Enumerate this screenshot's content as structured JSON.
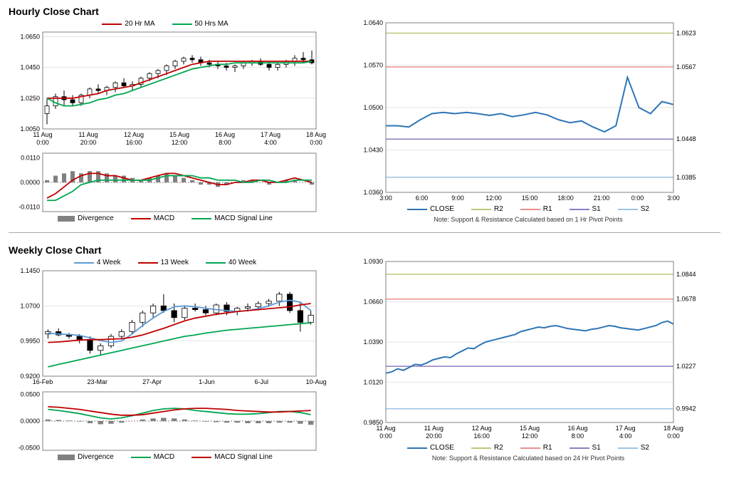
{
  "hourly": {
    "title": "Hourly Close Chart",
    "main": {
      "legend": [
        {
          "color": "#c00000",
          "label": "20 Hr MA"
        },
        {
          "color": "#00a651",
          "label": "50 Hrs MA"
        }
      ],
      "y_ticks": [
        1.005,
        1.025,
        1.045,
        1.065
      ],
      "ylim": [
        1.005,
        1.068
      ],
      "x_labels": [
        "11 Aug",
        "11 Aug",
        "12 Aug",
        "15 Aug",
        "16 Aug",
        "17 Aug",
        "18 Aug"
      ],
      "x_sub": [
        "0:00",
        "20:00",
        "16:00",
        "12:00",
        "8:00",
        "4:00",
        "0:00"
      ],
      "candles": [
        {
          "o": 1.015,
          "h": 1.025,
          "l": 1.008,
          "c": 1.02
        },
        {
          "o": 1.02,
          "h": 1.028,
          "l": 1.018,
          "c": 1.026
        },
        {
          "o": 1.026,
          "h": 1.03,
          "l": 1.02,
          "c": 1.024
        },
        {
          "o": 1.024,
          "h": 1.027,
          "l": 1.02,
          "c": 1.022
        },
        {
          "o": 1.022,
          "h": 1.028,
          "l": 1.02,
          "c": 1.027
        },
        {
          "o": 1.027,
          "h": 1.032,
          "l": 1.025,
          "c": 1.031
        },
        {
          "o": 1.031,
          "h": 1.034,
          "l": 1.028,
          "c": 1.03
        },
        {
          "o": 1.03,
          "h": 1.033,
          "l": 1.027,
          "c": 1.032
        },
        {
          "o": 1.032,
          "h": 1.036,
          "l": 1.029,
          "c": 1.035
        },
        {
          "o": 1.035,
          "h": 1.038,
          "l": 1.032,
          "c": 1.033
        },
        {
          "o": 1.033,
          "h": 1.036,
          "l": 1.03,
          "c": 1.034
        },
        {
          "o": 1.034,
          "h": 1.039,
          "l": 1.032,
          "c": 1.038
        },
        {
          "o": 1.038,
          "h": 1.042,
          "l": 1.036,
          "c": 1.041
        },
        {
          "o": 1.041,
          "h": 1.044,
          "l": 1.038,
          "c": 1.043
        },
        {
          "o": 1.043,
          "h": 1.047,
          "l": 1.04,
          "c": 1.046
        },
        {
          "o": 1.046,
          "h": 1.05,
          "l": 1.044,
          "c": 1.049
        },
        {
          "o": 1.049,
          "h": 1.052,
          "l": 1.047,
          "c": 1.051
        },
        {
          "o": 1.051,
          "h": 1.053,
          "l": 1.048,
          "c": 1.05
        },
        {
          "o": 1.05,
          "h": 1.052,
          "l": 1.046,
          "c": 1.048
        },
        {
          "o": 1.048,
          "h": 1.05,
          "l": 1.045,
          "c": 1.047
        },
        {
          "o": 1.047,
          "h": 1.049,
          "l": 1.044,
          "c": 1.046
        },
        {
          "o": 1.046,
          "h": 1.048,
          "l": 1.043,
          "c": 1.045
        },
        {
          "o": 1.045,
          "h": 1.047,
          "l": 1.042,
          "c": 1.046
        },
        {
          "o": 1.046,
          "h": 1.049,
          "l": 1.044,
          "c": 1.048
        },
        {
          "o": 1.048,
          "h": 1.05,
          "l": 1.046,
          "c": 1.049
        },
        {
          "o": 1.049,
          "h": 1.051,
          "l": 1.046,
          "c": 1.047
        },
        {
          "o": 1.047,
          "h": 1.049,
          "l": 1.043,
          "c": 1.045
        },
        {
          "o": 1.045,
          "h": 1.048,
          "l": 1.043,
          "c": 1.047
        },
        {
          "o": 1.047,
          "h": 1.05,
          "l": 1.045,
          "c": 1.049
        },
        {
          "o": 1.049,
          "h": 1.053,
          "l": 1.046,
          "c": 1.051
        },
        {
          "o": 1.051,
          "h": 1.055,
          "l": 1.048,
          "c": 1.05
        },
        {
          "o": 1.05,
          "h": 1.056,
          "l": 1.047,
          "c": 1.048
        }
      ],
      "ma20": [
        1.025,
        1.025,
        1.025,
        1.025,
        1.026,
        1.027,
        1.028,
        1.03,
        1.031,
        1.032,
        1.033,
        1.035,
        1.037,
        1.039,
        1.041,
        1.043,
        1.045,
        1.047,
        1.048,
        1.049,
        1.049,
        1.049,
        1.049,
        1.049,
        1.049,
        1.049,
        1.049,
        1.049,
        1.049,
        1.049,
        1.049,
        1.049
      ],
      "ma50": [
        1.025,
        1.022,
        1.02,
        1.02,
        1.021,
        1.022,
        1.024,
        1.025,
        1.027,
        1.028,
        1.03,
        1.032,
        1.034,
        1.036,
        1.038,
        1.04,
        1.042,
        1.044,
        1.045,
        1.046,
        1.047,
        1.047,
        1.048,
        1.048,
        1.048,
        1.048,
        1.048,
        1.048,
        1.048,
        1.048,
        1.048,
        1.049
      ],
      "ma20_color": "#c00000",
      "ma50_color": "#00a651"
    },
    "macd": {
      "ylim": [
        -0.013,
        0.013
      ],
      "y_ticks": [
        -0.011,
        0.0,
        0.011
      ],
      "hist": [
        0.001,
        0.003,
        0.004,
        0.005,
        0.004,
        0.005,
        0.005,
        0.004,
        0.003,
        0.003,
        0.002,
        0.001,
        0.002,
        0.003,
        0.004,
        0.003,
        0.002,
        0.001,
        -0.001,
        -0.001,
        -0.002,
        -0.001,
        0.0,
        0.001,
        0.001,
        0.0,
        -0.001,
        0.0,
        0.001,
        0.001,
        0.0,
        -0.001
      ],
      "macd": [
        -0.007,
        -0.005,
        -0.002,
        0.001,
        0.003,
        0.004,
        0.004,
        0.003,
        0.003,
        0.002,
        0.001,
        0.001,
        0.002,
        0.003,
        0.004,
        0.004,
        0.003,
        0.002,
        0.001,
        0.0,
        -0.001,
        -0.001,
        0.0,
        0.0,
        0.001,
        0.001,
        0.0,
        0.0,
        0.001,
        0.002,
        0.001,
        0.0
      ],
      "signal": [
        -0.008,
        -0.008,
        -0.006,
        -0.004,
        -0.001,
        0.0,
        0.001,
        0.001,
        0.001,
        0.001,
        0.001,
        0.001,
        0.001,
        0.002,
        0.003,
        0.003,
        0.003,
        0.003,
        0.002,
        0.002,
        0.001,
        0.001,
        0.001,
        0.0,
        0.0,
        0.001,
        0.001,
        0.0,
        0.0,
        0.001,
        0.001,
        0.001
      ],
      "macd_color": "#c00000",
      "signal_color": "#00a651",
      "hist_color": "#808080",
      "legend": [
        {
          "type": "bar",
          "color": "#808080",
          "label": "Divergence"
        },
        {
          "type": "line",
          "color": "#c00000",
          "label": "MACD"
        },
        {
          "type": "line",
          "color": "#00a651",
          "label": "MACD Signal Line"
        }
      ]
    },
    "pivot": {
      "ylim": [
        1.036,
        1.064
      ],
      "y_ticks": [
        1.036,
        1.043,
        1.05,
        1.057,
        1.064
      ],
      "x_labels": [
        "3:00",
        "6:00",
        "9:00",
        "12:00",
        "15:00",
        "18:00",
        "21:00",
        "0:00",
        "3:00"
      ],
      "close": [
        1.047,
        1.047,
        1.0468,
        1.048,
        1.049,
        1.0492,
        1.049,
        1.0492,
        1.049,
        1.0487,
        1.049,
        1.0485,
        1.0488,
        1.0492,
        1.0488,
        1.048,
        1.0475,
        1.0478,
        1.0468,
        1.046,
        1.047,
        1.055,
        1.05,
        1.049,
        1.051,
        1.0505
      ],
      "close_color": "#2e75b6",
      "r2": {
        "v": 1.0623,
        "color": "#b8c97a",
        "label": "1.0623"
      },
      "r1": {
        "v": 1.0567,
        "color": "#e88f8f",
        "label": "1.0567"
      },
      "s1": {
        "v": 1.0448,
        "color": "#8e7cc3",
        "label": "1.0448"
      },
      "s2": {
        "v": 1.0385,
        "color": "#9cc3e6",
        "label": "1.0385"
      },
      "legend": [
        {
          "color": "#2e75b6",
          "label": "CLOSE"
        },
        {
          "color": "#b8c97a",
          "label": "R2"
        },
        {
          "color": "#e88f8f",
          "label": "R1"
        },
        {
          "color": "#8e7cc3",
          "label": "S1"
        },
        {
          "color": "#9cc3e6",
          "label": "S2"
        }
      ],
      "note": "Note: Support & Resistance Calculated based on 1 Hr Pivot Points"
    }
  },
  "weekly": {
    "title": "Weekly Close Chart",
    "main": {
      "legend": [
        {
          "color": "#5b9bd5",
          "label": "4 Week"
        },
        {
          "color": "#c00000",
          "label": "13 Week"
        },
        {
          "color": "#00a651",
          "label": "40 Week"
        }
      ],
      "y_ticks": [
        0.92,
        0.995,
        1.07,
        1.145
      ],
      "ylim": [
        0.92,
        1.145
      ],
      "x_labels": [
        "16-Feb",
        "23-Mar",
        "27-Apr",
        "1-Jun",
        "6-Jul",
        "10-Aug"
      ],
      "candles": [
        {
          "o": 1.01,
          "h": 1.02,
          "l": 1.0,
          "c": 1.015
        },
        {
          "o": 1.015,
          "h": 1.022,
          "l": 1.005,
          "c": 1.008
        },
        {
          "o": 1.008,
          "h": 1.012,
          "l": 1.0,
          "c": 1.005
        },
        {
          "o": 1.005,
          "h": 1.01,
          "l": 0.99,
          "c": 0.998
        },
        {
          "o": 0.998,
          "h": 1.005,
          "l": 0.968,
          "c": 0.975
        },
        {
          "o": 0.975,
          "h": 0.99,
          "l": 0.965,
          "c": 0.985
        },
        {
          "o": 0.985,
          "h": 1.01,
          "l": 0.98,
          "c": 1.005
        },
        {
          "o": 1.005,
          "h": 1.02,
          "l": 0.998,
          "c": 1.015
        },
        {
          "o": 1.015,
          "h": 1.04,
          "l": 1.01,
          "c": 1.035
        },
        {
          "o": 1.035,
          "h": 1.06,
          "l": 1.025,
          "c": 1.055
        },
        {
          "o": 1.055,
          "h": 1.075,
          "l": 1.045,
          "c": 1.07
        },
        {
          "o": 1.07,
          "h": 1.095,
          "l": 1.055,
          "c": 1.06
        },
        {
          "o": 1.06,
          "h": 1.075,
          "l": 1.035,
          "c": 1.045
        },
        {
          "o": 1.045,
          "h": 1.07,
          "l": 1.04,
          "c": 1.065
        },
        {
          "o": 1.065,
          "h": 1.075,
          "l": 1.058,
          "c": 1.062
        },
        {
          "o": 1.062,
          "h": 1.07,
          "l": 1.05,
          "c": 1.055
        },
        {
          "o": 1.055,
          "h": 1.075,
          "l": 1.05,
          "c": 1.072
        },
        {
          "o": 1.072,
          "h": 1.078,
          "l": 1.05,
          "c": 1.058
        },
        {
          "o": 1.058,
          "h": 1.068,
          "l": 1.05,
          "c": 1.065
        },
        {
          "o": 1.065,
          "h": 1.075,
          "l": 1.058,
          "c": 1.068
        },
        {
          "o": 1.068,
          "h": 1.08,
          "l": 1.06,
          "c": 1.075
        },
        {
          "o": 1.075,
          "h": 1.085,
          "l": 1.068,
          "c": 1.08
        },
        {
          "o": 1.08,
          "h": 1.1,
          "l": 1.07,
          "c": 1.095
        },
        {
          "o": 1.095,
          "h": 1.1,
          "l": 1.055,
          "c": 1.06
        },
        {
          "o": 1.06,
          "h": 1.078,
          "l": 1.015,
          "c": 1.035
        },
        {
          "o": 1.035,
          "h": 1.06,
          "l": 1.03,
          "c": 1.05
        }
      ],
      "ma4": [
        1.012,
        1.01,
        1.009,
        1.007,
        1.002,
        0.996,
        0.992,
        0.995,
        1.01,
        1.028,
        1.044,
        1.058,
        1.068,
        1.07,
        1.068,
        1.065,
        1.062,
        1.06,
        1.058,
        1.06,
        1.064,
        1.07,
        1.078,
        1.082,
        1.078,
        1.06
      ],
      "ma13": [
        0.992,
        0.993,
        0.995,
        0.997,
        0.998,
        0.998,
        0.999,
        1.0,
        1.003,
        1.008,
        1.015,
        1.022,
        1.03,
        1.038,
        1.044,
        1.048,
        1.052,
        1.055,
        1.058,
        1.06,
        1.062,
        1.064,
        1.066,
        1.068,
        1.072,
        1.075
      ],
      "ma40": [
        0.94,
        0.945,
        0.95,
        0.955,
        0.96,
        0.965,
        0.97,
        0.975,
        0.98,
        0.985,
        0.99,
        0.995,
        1.0,
        1.005,
        1.008,
        1.012,
        1.015,
        1.018,
        1.02,
        1.022,
        1.024,
        1.026,
        1.028,
        1.03,
        1.032,
        1.034
      ],
      "ma4_color": "#5b9bd5",
      "ma13_color": "#c00000",
      "ma40_color": "#00a651"
    },
    "macd": {
      "ylim": [
        -0.055,
        0.055
      ],
      "y_ticks": [
        -0.05,
        0.0,
        0.05
      ],
      "hist": [
        0.003,
        0.002,
        0.001,
        -0.001,
        -0.004,
        -0.006,
        -0.005,
        -0.003,
        0.0,
        0.003,
        0.005,
        0.006,
        0.005,
        0.003,
        0.001,
        -0.001,
        -0.002,
        -0.003,
        -0.003,
        -0.004,
        -0.004,
        -0.004,
        -0.003,
        -0.003,
        -0.005,
        -0.007
      ],
      "macd": [
        0.022,
        0.02,
        0.017,
        0.014,
        0.01,
        0.006,
        0.004,
        0.006,
        0.01,
        0.015,
        0.02,
        0.023,
        0.024,
        0.023,
        0.02,
        0.018,
        0.016,
        0.014,
        0.013,
        0.013,
        0.014,
        0.016,
        0.018,
        0.018,
        0.016,
        0.012
      ],
      "signal": [
        0.027,
        0.026,
        0.024,
        0.022,
        0.019,
        0.016,
        0.013,
        0.011,
        0.011,
        0.012,
        0.015,
        0.018,
        0.021,
        0.023,
        0.024,
        0.024,
        0.023,
        0.022,
        0.02,
        0.019,
        0.018,
        0.017,
        0.017,
        0.018,
        0.019,
        0.02
      ],
      "macd_color": "#00a651",
      "signal_color": "#c00000",
      "hist_color": "#808080",
      "legend": [
        {
          "type": "bar",
          "color": "#808080",
          "label": "Divergence"
        },
        {
          "type": "line",
          "color": "#00a651",
          "label": "MACD"
        },
        {
          "type": "line",
          "color": "#c00000",
          "label": "MACD Signal Line"
        }
      ]
    },
    "pivot": {
      "ylim": [
        0.985,
        1.093
      ],
      "y_ticks": [
        0.985,
        1.012,
        1.039,
        1.066,
        1.093
      ],
      "x_labels": [
        "11 Aug",
        "11 Aug",
        "12 Aug",
        "15 Aug",
        "16 Aug",
        "17 Aug",
        "18 Aug"
      ],
      "x_sub": [
        "0:00",
        "20:00",
        "16:00",
        "12:00",
        "8:00",
        "4:00",
        "0:00"
      ],
      "close": [
        1.018,
        1.019,
        1.021,
        1.02,
        1.022,
        1.024,
        1.0235,
        1.025,
        1.027,
        1.028,
        1.029,
        1.0285,
        1.031,
        1.033,
        1.035,
        1.0345,
        1.037,
        1.039,
        1.04,
        1.041,
        1.042,
        1.043,
        1.044,
        1.046,
        1.047,
        1.048,
        1.049,
        1.0485,
        1.0495,
        1.05,
        1.049,
        1.048,
        1.0475,
        1.047,
        1.0465,
        1.0475,
        1.048,
        1.049,
        1.05,
        1.0495,
        1.0485,
        1.048,
        1.0475,
        1.047,
        1.048,
        1.049,
        1.05,
        1.052,
        1.053,
        1.051
      ],
      "close_color": "#2e75b6",
      "r2": {
        "v": 1.0844,
        "color": "#b8c97a",
        "label": "1.0844"
      },
      "r1": {
        "v": 1.0678,
        "color": "#e88f8f",
        "label": "1.0678"
      },
      "s1": {
        "v": 1.0227,
        "color": "#8e7cc3",
        "label": "1.0227"
      },
      "s2": {
        "v": 0.9942,
        "color": "#9cc3e6",
        "label": "0.9942"
      },
      "legend": [
        {
          "color": "#2e75b6",
          "label": "CLOSE"
        },
        {
          "color": "#b8c97a",
          "label": "R2"
        },
        {
          "color": "#e88f8f",
          "label": "R1"
        },
        {
          "color": "#8e7cc3",
          "label": "S1"
        },
        {
          "color": "#9cc3e6",
          "label": "S2"
        }
      ],
      "note": "Note: Support & Resistance Calculated based on 24 Hr Pivot Points"
    }
  }
}
